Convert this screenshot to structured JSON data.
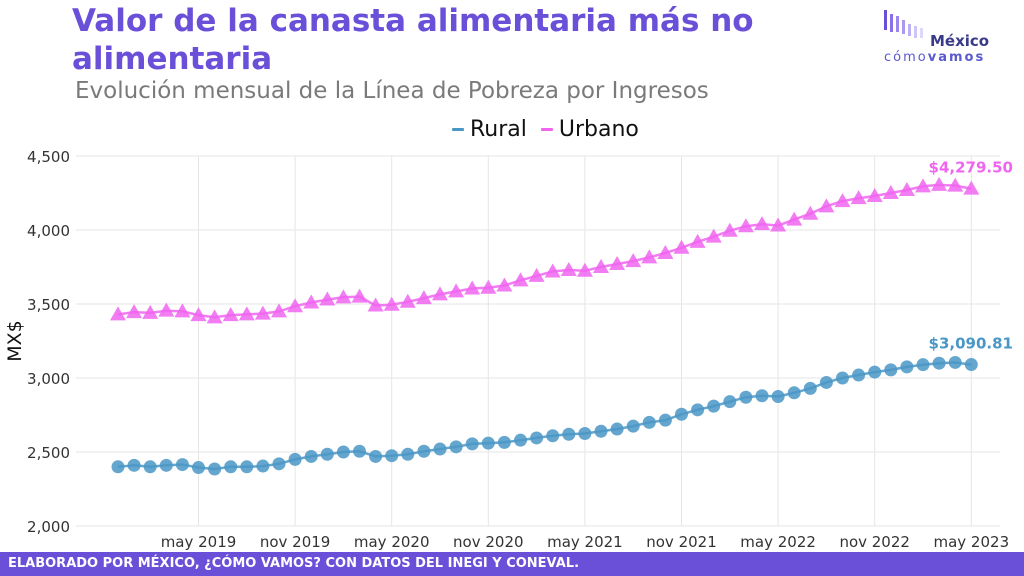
{
  "header": {
    "title": "Valor de la canasta alimentaria más no alimentaria",
    "subtitle": "Evolución mensual de la Línea de Pobreza por Ingresos"
  },
  "logo": {
    "name_top": "México",
    "name_bottom_light": "cómo",
    "name_bottom_bold": "vamos"
  },
  "footer": {
    "text": "ELABORADO POR MÉXICO, ¿CÓMO VAMOS? CON DATOS DEL INEGI Y CONEVAL."
  },
  "colors": {
    "title": "#6a4fd8",
    "rural": "#4a97c6",
    "urbano": "#f065f0",
    "footer_bg": "#6a4fd8"
  },
  "chart_data": {
    "type": "line",
    "title": "Valor de la canasta alimentaria más no alimentaria",
    "subtitle": "Evolución mensual de la Línea de Pobreza por Ingresos",
    "xlabel": "",
    "ylabel": "MX$",
    "ylim": [
      2000,
      4500
    ],
    "yticks": [
      "2,000",
      "2,500",
      "3,000",
      "3,500",
      "4,000",
      "4,500"
    ],
    "yticks_values": [
      2000,
      2500,
      3000,
      3500,
      4000,
      4500
    ],
    "xticks": [
      "may 2019",
      "nov 2019",
      "may 2020",
      "nov 2020",
      "may 2021",
      "nov 2021",
      "may 2022",
      "nov 2022",
      "may 2023"
    ],
    "xticks_positions": [
      "2019-05",
      "2019-11",
      "2020-05",
      "2020-11",
      "2021-05",
      "2021-11",
      "2022-05",
      "2022-11",
      "2023-05"
    ],
    "grid": true,
    "legend_position": "top",
    "x": [
      "2018-12",
      "2019-01",
      "2019-02",
      "2019-03",
      "2019-04",
      "2019-05",
      "2019-06",
      "2019-07",
      "2019-08",
      "2019-09",
      "2019-10",
      "2019-11",
      "2019-12",
      "2020-01",
      "2020-02",
      "2020-03",
      "2020-04",
      "2020-05",
      "2020-06",
      "2020-07",
      "2020-08",
      "2020-09",
      "2020-10",
      "2020-11",
      "2020-12",
      "2021-01",
      "2021-02",
      "2021-03",
      "2021-04",
      "2021-05",
      "2021-06",
      "2021-07",
      "2021-08",
      "2021-09",
      "2021-10",
      "2021-11",
      "2021-12",
      "2022-01",
      "2022-02",
      "2022-03",
      "2022-04",
      "2022-05",
      "2022-06",
      "2022-07",
      "2022-08",
      "2022-09",
      "2022-10",
      "2022-11",
      "2022-12",
      "2023-01",
      "2023-02",
      "2023-03",
      "2023-04",
      "2023-05"
    ],
    "series": [
      {
        "name": "Rural",
        "marker": "circle",
        "last_label": "$3,090.81",
        "values": [
          2400,
          2410,
          2400,
          2410,
          2415,
          2395,
          2385,
          2400,
          2400,
          2405,
          2420,
          2450,
          2470,
          2485,
          2500,
          2505,
          2470,
          2475,
          2485,
          2505,
          2520,
          2535,
          2555,
          2560,
          2565,
          2580,
          2595,
          2610,
          2620,
          2625,
          2640,
          2655,
          2675,
          2700,
          2715,
          2755,
          2785,
          2810,
          2840,
          2870,
          2880,
          2875,
          2900,
          2930,
          2970,
          3000,
          3020,
          3040,
          3055,
          3075,
          3090,
          3100,
          3105,
          3090.81
        ]
      },
      {
        "name": "Urbano",
        "marker": "triangle",
        "last_label": "$4,279.50",
        "values": [
          3430,
          3445,
          3440,
          3455,
          3450,
          3425,
          3410,
          3425,
          3430,
          3435,
          3450,
          3485,
          3510,
          3530,
          3545,
          3550,
          3490,
          3495,
          3515,
          3540,
          3565,
          3585,
          3605,
          3610,
          3625,
          3660,
          3690,
          3720,
          3730,
          3725,
          3750,
          3770,
          3790,
          3815,
          3845,
          3880,
          3920,
          3955,
          3995,
          4025,
          4040,
          4030,
          4070,
          4110,
          4160,
          4195,
          4215,
          4230,
          4250,
          4270,
          4295,
          4305,
          4300,
          4279.5
        ]
      }
    ]
  }
}
